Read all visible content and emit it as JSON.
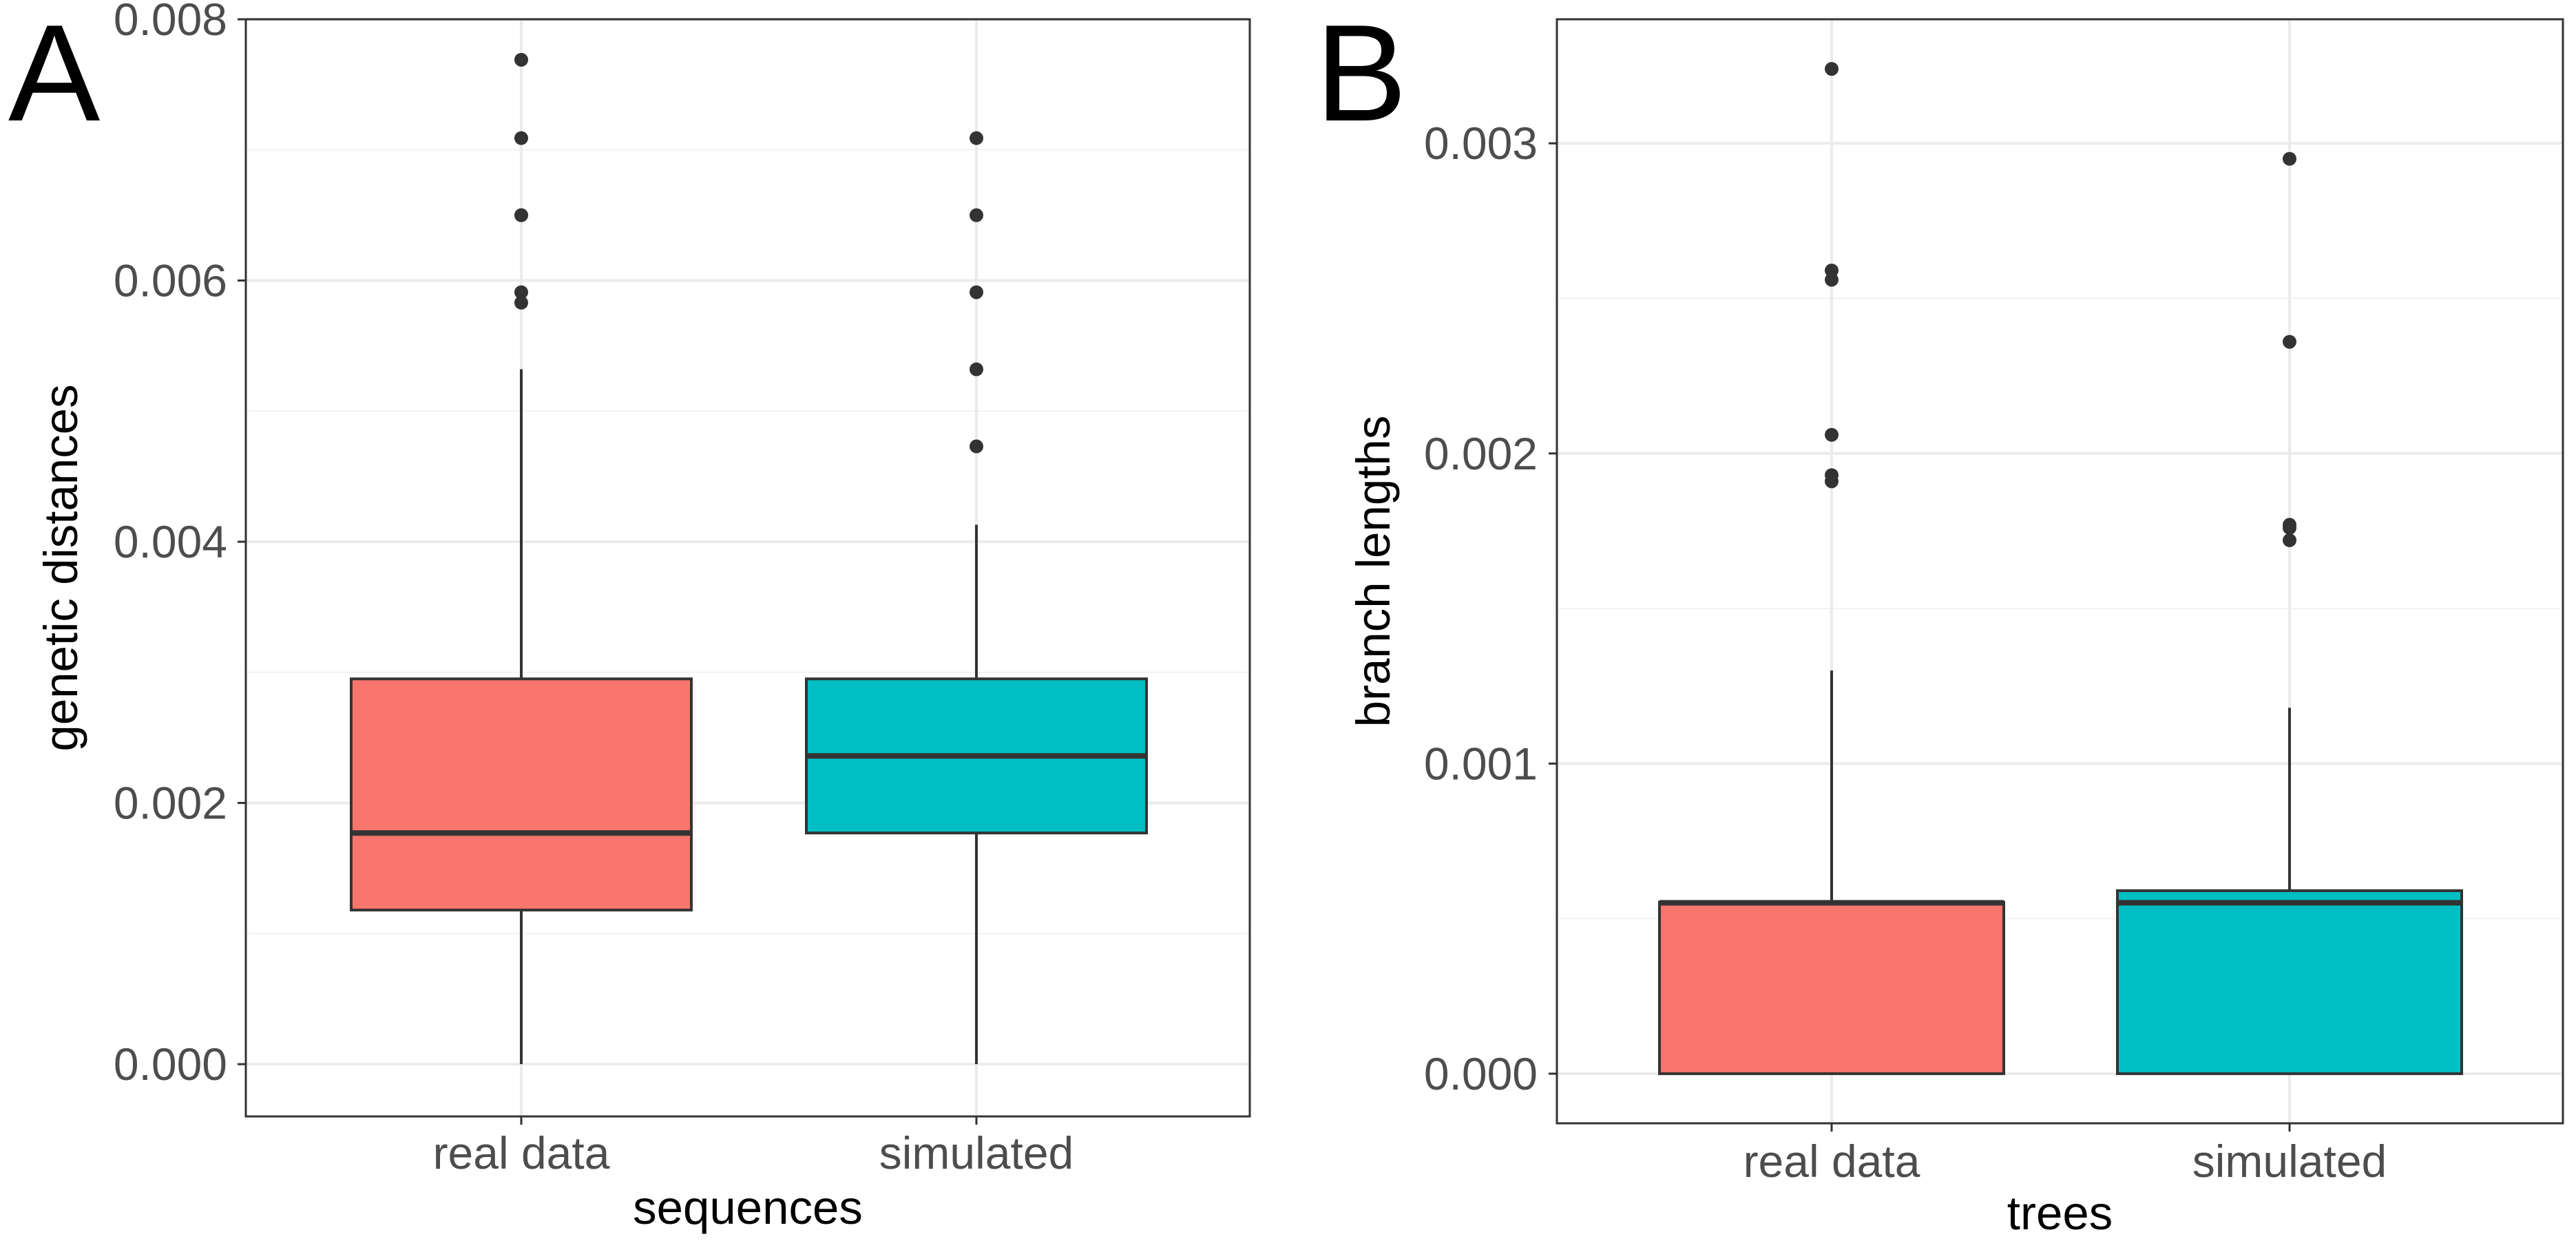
{
  "chart_data": [
    {
      "panel_label": "A",
      "type": "box",
      "xlabel": "sequences",
      "ylabel": "genetic distances",
      "ylim": [
        -0.0004,
        0.008
      ],
      "yticks": [
        0.0,
        0.002,
        0.004,
        0.006,
        0.008
      ],
      "ytick_labels": [
        "0.000",
        "0.002",
        "0.004",
        "0.006",
        "0.008"
      ],
      "grid": true,
      "legend": "none",
      "categories": [
        "real data",
        "simulated"
      ],
      "colors": [
        "#F8766D",
        "#00BFC4"
      ],
      "boxes": [
        {
          "category": "real data",
          "whisker_low": 0.0,
          "q1": 0.00118,
          "median": 0.00177,
          "q3": 0.00295,
          "whisker_high": 0.00532,
          "outliers": [
            0.00583,
            0.00591,
            0.0065,
            0.0065,
            0.00709,
            0.00769
          ]
        },
        {
          "category": "simulated",
          "whisker_low": 0.0,
          "q1": 0.00177,
          "median": 0.00236,
          "q3": 0.00295,
          "whisker_high": 0.00413,
          "outliers": [
            0.00473,
            0.00532,
            0.00591,
            0.0065,
            0.00709
          ]
        }
      ]
    },
    {
      "panel_label": "B",
      "type": "box",
      "xlabel": "trees",
      "ylabel": "branch lengths",
      "ylim": [
        -0.00016,
        0.0034
      ],
      "yticks": [
        0.0,
        0.001,
        0.002,
        0.003
      ],
      "ytick_labels": [
        "0.000",
        "0.001",
        "0.002",
        "0.003"
      ],
      "grid": true,
      "legend": "none",
      "categories": [
        "real data",
        "simulated"
      ],
      "colors": [
        "#F8766D",
        "#00BFC4"
      ],
      "boxes": [
        {
          "category": "real data",
          "whisker_low": 0.0,
          "q1": 0.0,
          "median": 0.000551,
          "q3": 0.000553,
          "whisker_high": 0.0013,
          "outliers": [
            0.00191,
            0.00193,
            0.00206,
            0.00256,
            0.00259,
            0.00324
          ]
        },
        {
          "category": "simulated",
          "whisker_low": 0.0,
          "q1": 0.0,
          "median": 0.000551,
          "q3": 0.00059,
          "whisker_high": 0.00118,
          "outliers": [
            0.00172,
            0.00176,
            0.00177,
            0.00236,
            0.00295
          ]
        }
      ]
    }
  ]
}
